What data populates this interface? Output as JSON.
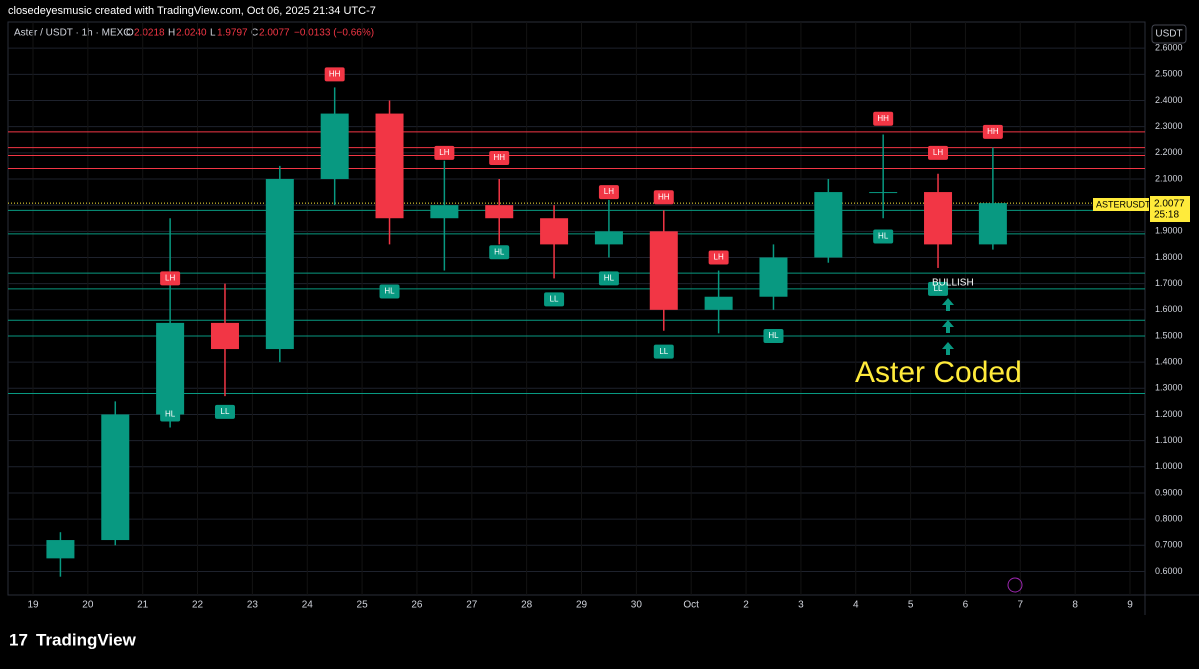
{
  "page_header": {
    "credit": "closedeyesmusic created with TradingView.com, Oct 06, 2025 21:34 UTC-7"
  },
  "legend": {
    "symbol": "Aster / USDT · 1h · MEXC",
    "o_label": "O",
    "o": "2.0218",
    "h_label": "H",
    "h": "2.0240",
    "l_label": "L",
    "l": "1.9797",
    "c_label": "C",
    "c": "2.0077",
    "change": "−0.0133 (−0.66%)"
  },
  "currency_button": "USDT",
  "price_tag": {
    "symbol": "ASTERUSDT",
    "price": "2.0077",
    "countdown": "25:18"
  },
  "footer": {
    "brand": "TradingView"
  },
  "chart_data": {
    "type": "candlestick",
    "categories": [
      "19",
      "20",
      "21",
      "22",
      "23",
      "24",
      "25",
      "26",
      "27",
      "28",
      "29",
      "30",
      "Oct",
      "2",
      "3",
      "4",
      "5",
      "6",
      "7",
      "8",
      "9"
    ],
    "open": [
      0.65,
      0.72,
      1.2,
      1.55,
      1.45,
      2.1,
      2.35,
      1.95,
      2.0,
      1.95,
      1.85,
      1.9,
      1.6,
      1.65,
      1.8,
      2.05,
      2.05,
      1.85,
      null,
      null,
      null
    ],
    "high": [
      0.75,
      1.25,
      1.95,
      1.7,
      2.15,
      2.45,
      2.4,
      2.17,
      2.1,
      2.0,
      2.02,
      1.98,
      1.75,
      1.85,
      2.1,
      2.27,
      2.12,
      2.22,
      null,
      null,
      null
    ],
    "low": [
      0.58,
      0.7,
      1.15,
      1.27,
      1.4,
      2.0,
      1.85,
      1.75,
      1.85,
      1.72,
      1.8,
      1.52,
      1.51,
      1.6,
      1.78,
      1.95,
      1.76,
      1.83,
      null,
      null,
      null
    ],
    "close": [
      0.72,
      1.2,
      1.55,
      1.45,
      2.1,
      2.35,
      1.95,
      2.0,
      1.95,
      1.85,
      1.9,
      1.6,
      1.65,
      1.8,
      2.05,
      2.05,
      1.85,
      2.0077,
      null,
      null,
      null
    ],
    "up_color": "#089981",
    "down_color": "#f23645",
    "resistance_levels": [
      2.28,
      2.22,
      2.19,
      2.14
    ],
    "resistance_color": "#f23645",
    "support_levels": [
      1.98,
      1.89,
      1.74,
      1.68,
      1.56,
      1.5,
      1.28
    ],
    "support_color": "#089981",
    "ylim": [
      0.51,
      2.7
    ],
    "yticks": [
      {
        "value": 0.6,
        "label": "0.6000"
      },
      {
        "value": 0.7,
        "label": "0.7000"
      },
      {
        "value": 0.8,
        "label": "0.8000"
      },
      {
        "value": 0.9,
        "label": "0.9000"
      },
      {
        "value": 1.0,
        "label": "1.0000"
      },
      {
        "value": 1.1,
        "label": "1.1000"
      },
      {
        "value": 1.2,
        "label": "1.2000"
      },
      {
        "value": 1.3,
        "label": "1.3000"
      },
      {
        "value": 1.4,
        "label": "1.4000"
      },
      {
        "value": 1.5,
        "label": "1.5000"
      },
      {
        "value": 1.6,
        "label": "1.6000"
      },
      {
        "value": 1.7,
        "label": "1.7000"
      },
      {
        "value": 1.8,
        "label": "1.8000"
      },
      {
        "value": 1.9,
        "label": "1.9000"
      },
      {
        "value": 2.0,
        "label": "2.0000"
      },
      {
        "value": 2.1,
        "label": "2.1000"
      },
      {
        "value": 2.2,
        "label": "2.2000"
      },
      {
        "value": 2.3,
        "label": "2.3000"
      },
      {
        "value": 2.4,
        "label": "2.4000"
      },
      {
        "value": 2.5,
        "label": "2.5000"
      },
      {
        "value": 2.6,
        "label": "2.6000"
      }
    ],
    "grid": true,
    "annotations": [
      {
        "text": "HH",
        "x": "24",
        "y": 2.5,
        "kind": "high"
      },
      {
        "text": "LH",
        "x": "21",
        "y": 1.72,
        "kind": "high"
      },
      {
        "text": "HL",
        "x": "21",
        "y": 1.2,
        "kind": "low"
      },
      {
        "text": "LL",
        "x": "22",
        "y": 1.21,
        "kind": "low"
      },
      {
        "text": "LH",
        "x": "26",
        "y": 2.2,
        "kind": "high"
      },
      {
        "text": "HH",
        "x": "27",
        "y": 2.18,
        "kind": "high"
      },
      {
        "text": "HL",
        "x": "25",
        "y": 1.67,
        "kind": "low"
      },
      {
        "text": "HL",
        "x": "27",
        "y": 1.82,
        "kind": "low"
      },
      {
        "text": "LL",
        "x": "28",
        "y": 1.64,
        "kind": "low"
      },
      {
        "text": "LH",
        "x": "29",
        "y": 2.05,
        "kind": "high"
      },
      {
        "text": "HL",
        "x": "29",
        "y": 1.72,
        "kind": "low"
      },
      {
        "text": "HH",
        "x": "30",
        "y": 2.03,
        "kind": "high"
      },
      {
        "text": "LL",
        "x": "30",
        "y": 1.44,
        "kind": "low"
      },
      {
        "text": "LH",
        "x": "Oct",
        "y": 1.8,
        "kind": "high"
      },
      {
        "text": "HL",
        "x": "2",
        "y": 1.5,
        "kind": "low"
      },
      {
        "text": "HH",
        "x": "4",
        "y": 2.33,
        "kind": "high"
      },
      {
        "text": "HL",
        "x": "4",
        "y": 1.88,
        "kind": "low"
      },
      {
        "text": "LH",
        "x": "5",
        "y": 2.2,
        "kind": "high"
      },
      {
        "text": "LL",
        "x": "5",
        "y": 1.68,
        "kind": "low"
      },
      {
        "text": "HH",
        "x": "6",
        "y": 2.28,
        "kind": "high"
      }
    ],
    "signal_label": "BULLISH",
    "watermark_text": "Aster Coded"
  }
}
